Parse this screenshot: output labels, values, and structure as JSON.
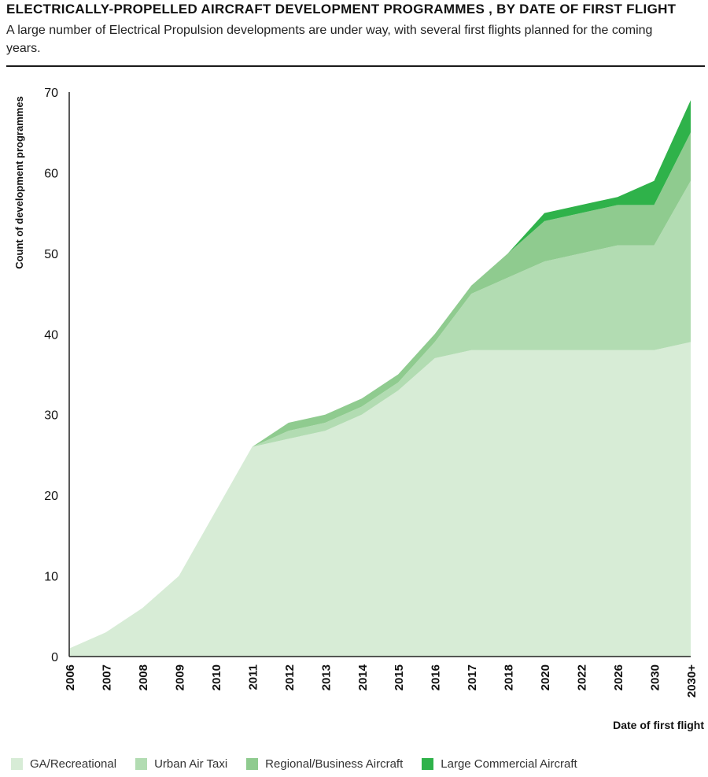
{
  "header": {
    "title": "ELECTRICALLY-PROPELLED AIRCRAFT DEVELOPMENT PROGRAMMES , BY DATE OF FIRST FLIGHT",
    "subtitle": "A large number of Electrical Propulsion developments are under way, with several first flights planned for the coming years."
  },
  "chart_data": {
    "type": "area",
    "stacked": true,
    "title": "ELECTRICALLY-PROPELLED AIRCRAFT DEVELOPMENT PROGRAMMES , BY DATE OF FIRST FLIGHT",
    "xlabel": "Date of first flight",
    "ylabel": "Count of development programmes",
    "ylim": [
      0,
      70
    ],
    "yticks": [
      0,
      10,
      20,
      30,
      40,
      50,
      60,
      70
    ],
    "grid": false,
    "legend_position": "bottom",
    "categories": [
      "2006",
      "2007",
      "2008",
      "2009",
      "2010",
      "2011",
      "2012",
      "2013",
      "2014",
      "2015",
      "2016",
      "2017",
      "2018",
      "2020",
      "2022",
      "2026",
      "2030",
      "2030+"
    ],
    "series": [
      {
        "name": "GA/Recreational",
        "color": "#d7ecd6",
        "values": [
          1,
          3,
          6,
          10,
          18,
          26,
          27,
          28,
          30,
          33,
          37,
          38,
          38,
          38,
          38,
          38,
          38,
          39
        ]
      },
      {
        "name": "Urban Air Taxi",
        "color": "#b2dcb2",
        "values": [
          0,
          0,
          0,
          0,
          0,
          0,
          1,
          1,
          1,
          1,
          2,
          7,
          9,
          11,
          12,
          13,
          13,
          20
        ]
      },
      {
        "name": "Regional/Business Aircraft",
        "color": "#8fcb8f",
        "values": [
          0,
          0,
          0,
          0,
          0,
          0,
          1,
          1,
          1,
          1,
          1,
          1,
          3,
          5,
          5,
          5,
          5,
          6
        ]
      },
      {
        "name": "Large Commercial Aircraft",
        "color": "#2fb24a",
        "values": [
          0,
          0,
          0,
          0,
          0,
          0,
          0,
          0,
          0,
          0,
          0,
          0,
          0,
          1,
          1,
          1,
          3,
          4
        ]
      }
    ]
  }
}
